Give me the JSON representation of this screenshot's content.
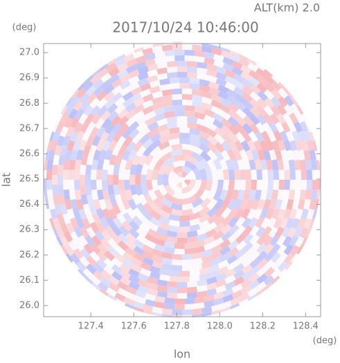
{
  "chart_data": {
    "type": "heatmap",
    "title": "2017/10/24 10:46:00",
    "annotation": "ALT(km) 2.0",
    "x_label": "lon",
    "y_label": "lat",
    "x_unit": "(deg)",
    "y_unit": "(deg)",
    "xlim": [
      127.18,
      128.47
    ],
    "ylim": [
      25.956,
      27.036
    ],
    "xticks": [
      127.4,
      127.6,
      127.8,
      {
        "value": 128,
        "label": "128.0"
      },
      128.2,
      128.4
    ],
    "yticks": [
      {
        "value": 26,
        "label": "26.0"
      },
      26.1,
      26.2,
      26.3,
      26.4,
      26.5,
      26.6,
      26.7,
      26.8,
      26.9,
      {
        "value": 27,
        "label": "27.0"
      }
    ]
  }
}
